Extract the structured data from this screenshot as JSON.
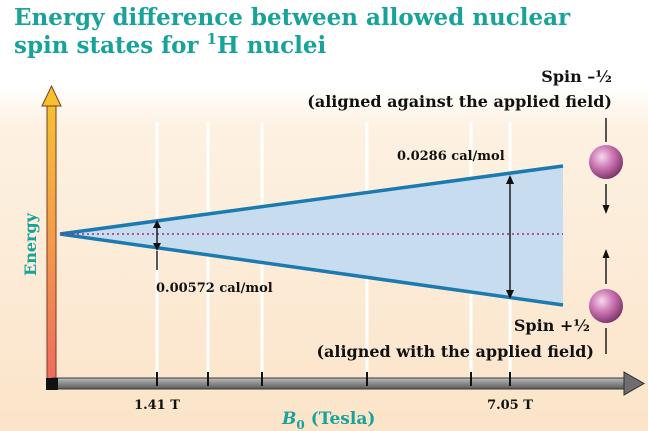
{
  "title": {
    "line1": "Energy difference between allowed nuclear",
    "line2_prefix": "spin states for ",
    "line2_sup": "1",
    "line2_suffix": "H nuclei"
  },
  "y_axis_label": "Energy",
  "x_axis_label": {
    "symbol": "B",
    "subscript": "0",
    "unit": "(Tesla)"
  },
  "x_ticks": [
    "1.41 T",
    "7.05 T"
  ],
  "spin_minus": {
    "label": "Spin –½",
    "description": "(aligned against the applied field)",
    "direction": "down"
  },
  "spin_plus": {
    "label": "Spin +½",
    "description": "(aligned with the applied field)",
    "direction": "up"
  },
  "energy_gap_small": "0.00572 cal/mol",
  "energy_gap_large": "0.0286 cal/mol",
  "colors": {
    "title": "#18a39a",
    "axis_label": "#18a39a",
    "band_fill": "#c7dcee",
    "band_edge": "#1b7bb0",
    "midline": "#a0307a",
    "background_top": "#ffffff",
    "background_bottom": "#fbe6cd",
    "sphere": "#c26aa7"
  }
}
